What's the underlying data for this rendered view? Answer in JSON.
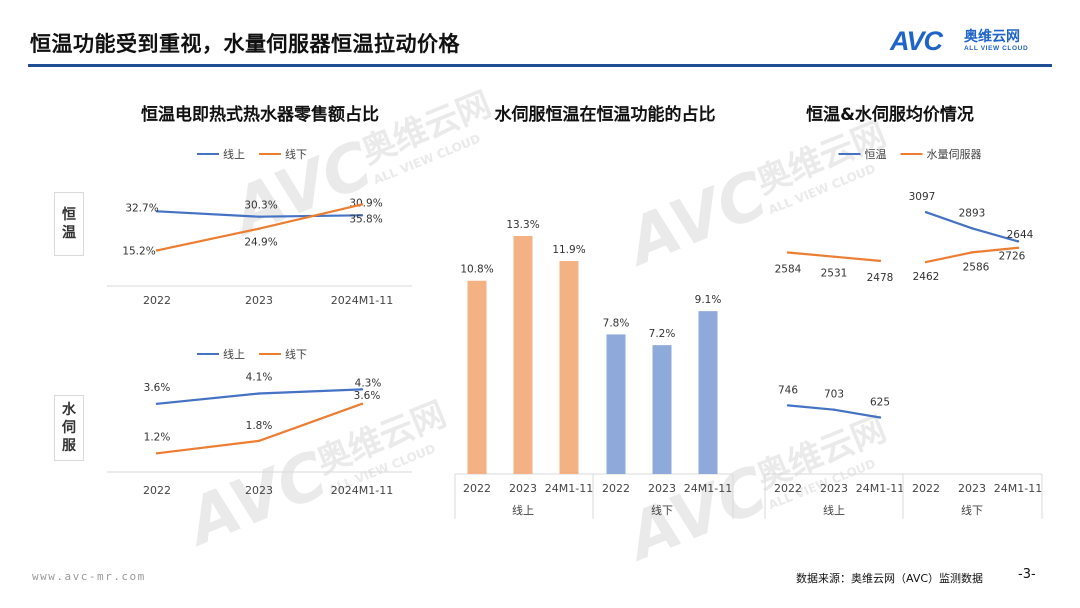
{
  "page": {
    "title": "恒温功能受到重视，水量伺服器恒温拉动价格",
    "logo_mark": "AVC",
    "logo_cn": "奥维云网",
    "logo_en": "ALL VIEW CLOUD",
    "watermark_text": "AVC",
    "watermark_cn": "奥维云网",
    "watermark_en": "ALL VIEW CLOUD",
    "footer_url": "www.avc-mr.com",
    "footer_source": "数据来源：奥维云网（AVC）监测数据",
    "page_number": "-3-",
    "brand_color": "#1f4e96",
    "series_colors": {
      "blue": "#4472c4",
      "orange": "#ed7d31",
      "bar_orange": "#f4b183",
      "bar_blue": "#8eaadb"
    }
  },
  "left_panel": {
    "title": "恒温电即热式热水器零售额占比",
    "row_labels": [
      "恒温",
      "水伺服"
    ]
  },
  "middle_panel": {
    "title": "水伺服恒温在恒温功能的占比"
  },
  "right_panel": {
    "title": "恒温&水伺服均价情况"
  },
  "chart_data": [
    {
      "type": "line",
      "title": "恒温电即热式热水器零售额占比",
      "row_label": "恒温",
      "categories": [
        "2022",
        "2023",
        "2024M1-11"
      ],
      "series": [
        {
          "name": "线上",
          "values": [
            32.7,
            30.3,
            30.9
          ],
          "labels": [
            "32.7%",
            "30.3%",
            "30.9%"
          ]
        },
        {
          "name": "线下",
          "values": [
            15.2,
            24.9,
            35.8
          ],
          "labels": [
            "15.2%",
            "24.9%",
            "35.8%"
          ]
        }
      ],
      "legend": "top-center",
      "ylim": [
        10,
        40
      ]
    },
    {
      "type": "line",
      "row_label": "水伺服",
      "categories": [
        "2022",
        "2023",
        "2024M1-11"
      ],
      "series": [
        {
          "name": "线上",
          "values": [
            3.6,
            4.1,
            4.3
          ],
          "labels": [
            "3.6%",
            "4.1%",
            "4.3%"
          ]
        },
        {
          "name": "线下",
          "values": [
            1.2,
            1.8,
            3.6
          ],
          "labels": [
            "1.2%",
            "1.8%",
            "3.6%"
          ]
        }
      ],
      "legend": "top-center",
      "ylim": [
        0,
        5
      ]
    },
    {
      "type": "bar",
      "title": "水伺服恒温在恒温功能的占比",
      "groups": [
        {
          "name": "线上",
          "categories": [
            "2022",
            "2023",
            "24M1-11"
          ],
          "values": [
            10.8,
            13.3,
            11.9
          ],
          "labels": [
            "10.8%",
            "13.3%",
            "11.9%"
          ]
        },
        {
          "name": "线下",
          "categories": [
            "2022",
            "2023",
            "24M1-11"
          ],
          "values": [
            7.8,
            7.2,
            9.1
          ],
          "labels": [
            "7.8%",
            "7.2%",
            "9.1%"
          ]
        }
      ],
      "ylim": [
        0,
        14
      ]
    },
    {
      "type": "line",
      "title": "恒温&水伺服均价情况",
      "groups": [
        {
          "name": "线上",
          "categories": [
            "2022",
            "2023",
            "24M1-11"
          ]
        },
        {
          "name": "线下",
          "categories": [
            "2022",
            "2023",
            "24M1-11"
          ]
        }
      ],
      "series": [
        {
          "name": "恒温",
          "online": [
            746,
            703,
            625
          ],
          "offline": [
            3097,
            2893,
            2726
          ]
        },
        {
          "name": "水量伺服器",
          "online": [
            2584,
            2531,
            2478
          ],
          "offline": [
            2462,
            2586,
            2644
          ]
        }
      ],
      "legend": "top-center"
    }
  ]
}
